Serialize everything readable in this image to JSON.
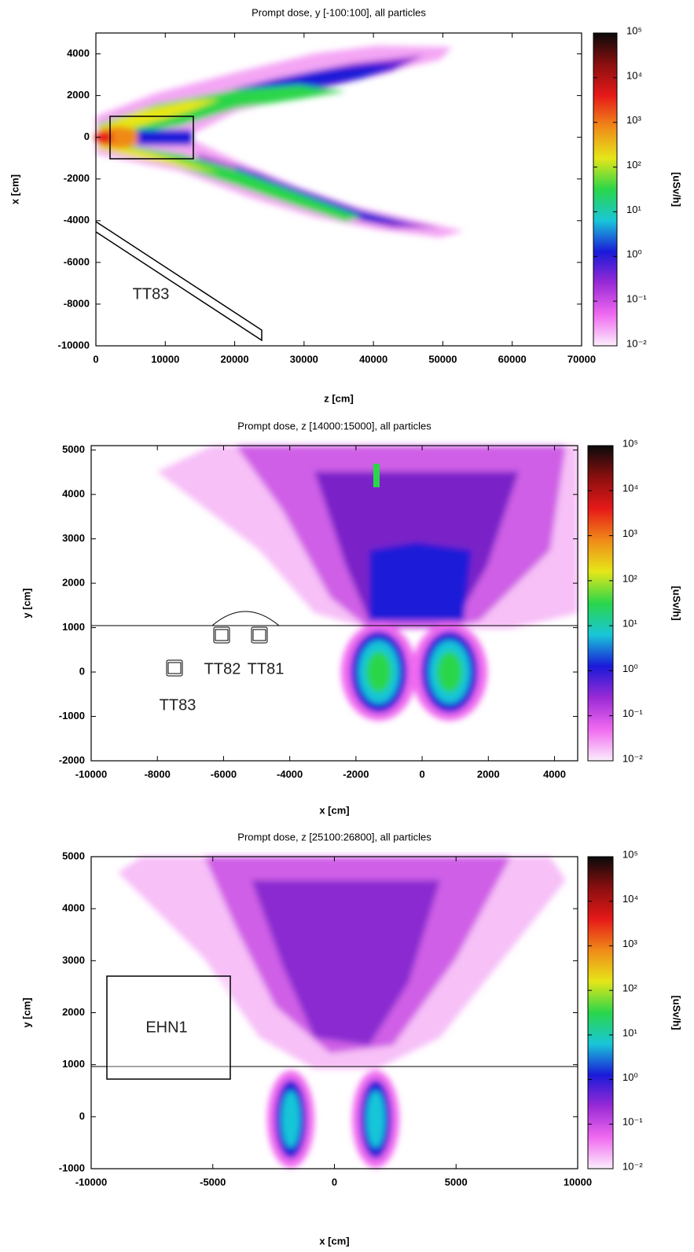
{
  "chart_data": [
    {
      "type": "heatmap",
      "title": "Prompt dose, y [-100:100], all particles",
      "xlabel": "z [cm]",
      "ylabel": "x [cm]",
      "xlim": [
        0,
        70000
      ],
      "xticks": [
        0,
        10000,
        20000,
        30000,
        40000,
        50000,
        60000,
        70000
      ],
      "ylim": [
        -10000,
        5000
      ],
      "yticks": [
        -10000,
        -8000,
        -6000,
        -4000,
        -2000,
        0,
        2000,
        4000
      ],
      "colorbar": {
        "label": "[uSv/h]",
        "log": true,
        "lim": [
          0.01,
          100000
        ],
        "ticks": [
          {
            "value": 0.01,
            "label": "10⁻²"
          },
          {
            "value": 0.1,
            "label": "10⁻¹"
          },
          {
            "value": 1,
            "label": "10⁰"
          },
          {
            "value": 10,
            "label": "10¹"
          },
          {
            "value": 100,
            "label": "10²"
          },
          {
            "value": 1000,
            "label": "10³"
          },
          {
            "value": 10000,
            "label": "10⁴"
          },
          {
            "value": 100000,
            "label": "10⁵"
          }
        ],
        "colors": [
          "#fbeefb",
          "#f06af0",
          "#9a2ad6",
          "#1a1ad8",
          "#19c6d8",
          "#2ad64a",
          "#e6e619",
          "#f08a19",
          "#e61919",
          "#8a0f0f",
          "#0a0a0a"
        ]
      },
      "annotations": [
        "TT83"
      ]
    },
    {
      "type": "heatmap",
      "title": "Prompt dose, z [14000:15000], all particles",
      "xlabel": "x [cm]",
      "ylabel": "y [cm]",
      "xlim": [
        -10000,
        4700
      ],
      "xticks": [
        -10000,
        -8000,
        -6000,
        -4000,
        -2000,
        0,
        2000,
        4000
      ],
      "ylim": [
        -2000,
        5100
      ],
      "yticks": [
        -2000,
        -1000,
        0,
        1000,
        2000,
        3000,
        4000,
        5000
      ],
      "colorbar": {
        "label": "[uSv/h]",
        "log": true,
        "lim": [
          0.01,
          100000
        ],
        "ticks": [
          {
            "value": 0.01,
            "label": "10⁻²"
          },
          {
            "value": 0.1,
            "label": "10⁻¹"
          },
          {
            "value": 1,
            "label": "10⁰"
          },
          {
            "value": 10,
            "label": "10¹"
          },
          {
            "value": 100,
            "label": "10²"
          },
          {
            "value": 1000,
            "label": "10³"
          },
          {
            "value": 10000,
            "label": "10⁴"
          },
          {
            "value": 100000,
            "label": "10⁵"
          }
        ],
        "colors": [
          "#fbeefb",
          "#f06af0",
          "#9a2ad6",
          "#1a1ad8",
          "#19c6d8",
          "#2ad64a",
          "#e6e619",
          "#f08a19",
          "#e61919",
          "#8a0f0f",
          "#0a0a0a"
        ]
      },
      "annotations": [
        "TT82",
        "TT81",
        "TT83"
      ]
    },
    {
      "type": "heatmap",
      "title": "Prompt dose, z [25100:26800], all particles",
      "xlabel": "x [cm]",
      "ylabel": "y [cm]",
      "xlim": [
        -10000,
        10000
      ],
      "xticks": [
        -10000,
        -5000,
        0,
        5000,
        10000
      ],
      "ylim": [
        -1000,
        5000
      ],
      "yticks": [
        -1000,
        0,
        1000,
        2000,
        3000,
        4000,
        5000
      ],
      "colorbar": {
        "label": "[uSv/h]",
        "log": true,
        "lim": [
          0.01,
          100000
        ],
        "ticks": [
          {
            "value": 0.01,
            "label": "10⁻²"
          },
          {
            "value": 0.1,
            "label": "10⁻¹"
          },
          {
            "value": 1,
            "label": "10⁰"
          },
          {
            "value": 10,
            "label": "10¹"
          },
          {
            "value": 100,
            "label": "10²"
          },
          {
            "value": 1000,
            "label": "10³"
          },
          {
            "value": 10000,
            "label": "10⁴"
          },
          {
            "value": 100000,
            "label": "10⁵"
          }
        ],
        "colors": [
          "#fbeefb",
          "#f06af0",
          "#9a2ad6",
          "#1a1ad8",
          "#19c6d8",
          "#2ad64a",
          "#e6e619",
          "#f08a19",
          "#e61919",
          "#8a0f0f",
          "#0a0a0a"
        ]
      },
      "annotations": [
        "EHN1"
      ]
    }
  ]
}
